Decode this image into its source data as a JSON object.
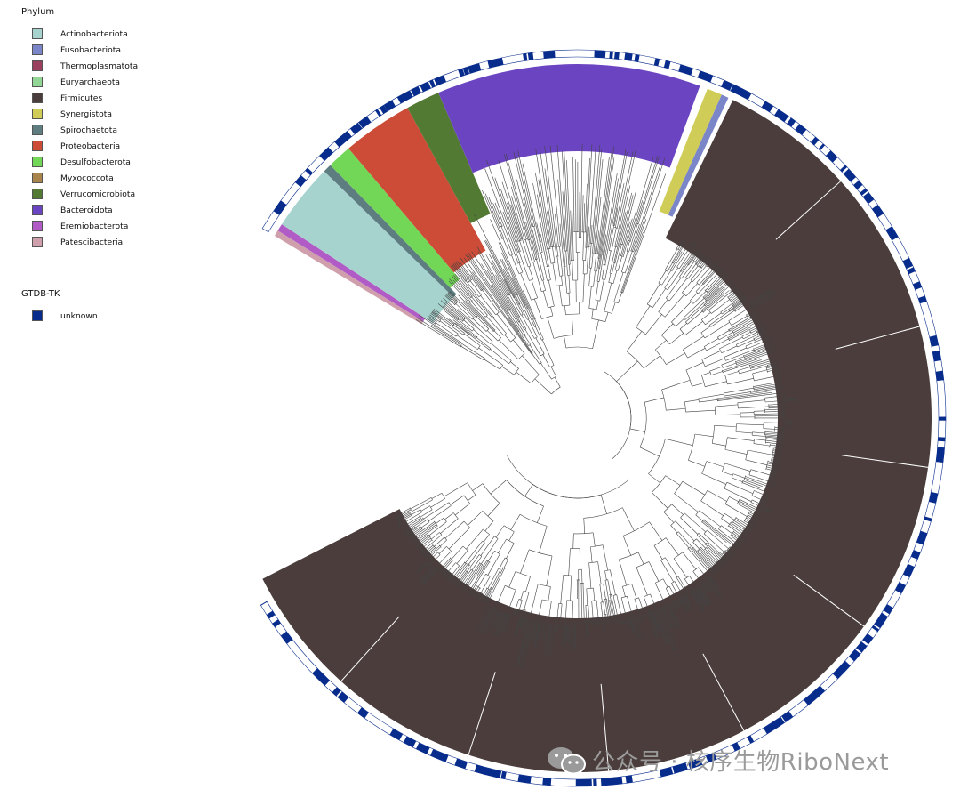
{
  "legend_phylum": {
    "title": "Phylum",
    "items": [
      {
        "label": "Actinobacteriota",
        "color": "#a7d3cf"
      },
      {
        "label": "Fusobacteriota",
        "color": "#7b86c8"
      },
      {
        "label": "Thermoplasmatota",
        "color": "#9b3f5e"
      },
      {
        "label": "Euryarchaeota",
        "color": "#92d695"
      },
      {
        "label": "Firmicutes",
        "color": "#4a3d3c"
      },
      {
        "label": "Synergistota",
        "color": "#cfcd57"
      },
      {
        "label": "Spirochaetota",
        "color": "#5e7d80"
      },
      {
        "label": "Proteobacteria",
        "color": "#cc4c37"
      },
      {
        "label": "Desulfobacterota",
        "color": "#72d657"
      },
      {
        "label": "Myxococcota",
        "color": "#a9844d"
      },
      {
        "label": "Verrucomicrobiota",
        "color": "#537a33"
      },
      {
        "label": "Bacteroidota",
        "color": "#6b44c2"
      },
      {
        "label": "Eremiobacterota",
        "color": "#b15bc6"
      },
      {
        "label": "Patescibacteria",
        "color": "#cfa0ac"
      }
    ]
  },
  "legend_gtdb": {
    "title": "GTDB-TK",
    "items": [
      {
        "label": "unknown",
        "color": "#082c8c"
      }
    ]
  },
  "watermark": {
    "text": "公众号 · 核序生物RiboNext",
    "icon": "wechat-icon"
  }
}
